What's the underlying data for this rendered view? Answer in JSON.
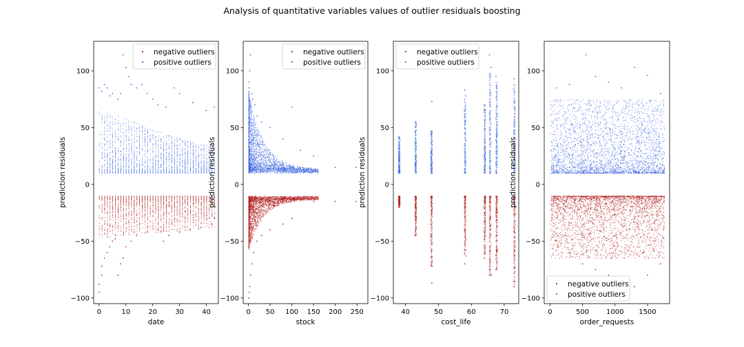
{
  "figure": {
    "title": "Analysis of quantitative variables values of outlier residuals boosting"
  },
  "colors": {
    "negative": "#b22222",
    "positive": "#4169e1"
  },
  "chart_data": [
    {
      "type": "scatter",
      "xlabel": "date",
      "ylabel": "prediction residuals",
      "xlim": [
        -2,
        44.5
      ],
      "ylim": [
        -105,
        126
      ],
      "xticks": [
        0,
        10,
        20,
        30,
        40
      ],
      "yticks": [
        -100,
        -50,
        0,
        50,
        100
      ],
      "legend_position": "upper right",
      "series": [
        {
          "name": "negative outliers",
          "color": "#b22222",
          "x": [
            0,
            0,
            1,
            1,
            2,
            3,
            4,
            5,
            6,
            7,
            8,
            9,
            10,
            12,
            14,
            18,
            22,
            24,
            26,
            30,
            34,
            38,
            42,
            43
          ],
          "y": [
            -95,
            -88,
            -80,
            -72,
            -65,
            -60,
            -55,
            -50,
            -48,
            -80,
            -70,
            -65,
            -55,
            -50,
            -45,
            -42,
            -40,
            -50,
            -45,
            -42,
            -40,
            -38,
            -35,
            -30
          ]
        },
        {
          "name": "positive outliers",
          "color": "#4169e1",
          "x": [
            0,
            1,
            2,
            3,
            4,
            5,
            7,
            8,
            9,
            10,
            11,
            12,
            14,
            16,
            18,
            20,
            22,
            25,
            28,
            30,
            35,
            40,
            43
          ],
          "y": [
            85,
            82,
            88,
            85,
            78,
            80,
            75,
            80,
            114,
            103,
            95,
            88,
            85,
            88,
            80,
            75,
            70,
            68,
            85,
            80,
            72,
            65,
            68
          ]
        }
      ]
    },
    {
      "type": "scatter",
      "xlabel": "stock",
      "ylabel": "prediction residuals",
      "xlim": [
        -12,
        275
      ],
      "ylim": [
        -105,
        126
      ],
      "xticks": [
        0,
        50,
        100,
        150,
        200,
        250
      ],
      "yticks": [
        -100,
        -50,
        0,
        50,
        100
      ],
      "legend_position": "upper right",
      "series": [
        {
          "name": "negative outliers",
          "color": "#b22222",
          "x": [
            1,
            2,
            3,
            5,
            8,
            12,
            20,
            30,
            50,
            80,
            100,
            150,
            200,
            248
          ],
          "y": [
            -100,
            -95,
            -90,
            -80,
            -70,
            -60,
            -50,
            -45,
            -40,
            -35,
            -30,
            -15,
            -15,
            -15
          ]
        },
        {
          "name": "positive outliers",
          "color": "#4169e1",
          "x": [
            1,
            2,
            3,
            5,
            8,
            10,
            15,
            20,
            30,
            50,
            80,
            100,
            120,
            150,
            200,
            248
          ],
          "y": [
            90,
            85,
            100,
            114,
            80,
            75,
            70,
            60,
            55,
            50,
            40,
            68,
            30,
            25,
            15,
            15
          ]
        }
      ]
    },
    {
      "type": "scatter",
      "xlabel": "cost_life",
      "ylabel": "prediction residuals",
      "xlim": [
        36.3,
        74.4
      ],
      "ylim": [
        -105,
        126
      ],
      "xticks": [
        40,
        50,
        60,
        70
      ],
      "yticks": [
        -100,
        -50,
        0,
        50,
        100
      ],
      "legend_position": "upper left",
      "series": [
        {
          "name": "negative outliers",
          "color": "#b22222",
          "x": [
            38,
            43,
            48,
            48,
            58,
            64,
            65.5,
            66,
            67.5,
            73
          ],
          "y": [
            -20,
            -45,
            -72,
            -87,
            -70,
            -65,
            -80,
            -80,
            -75,
            -90
          ]
        },
        {
          "name": "positive outliers",
          "color": "#4169e1",
          "x": [
            38,
            43,
            48,
            48,
            58,
            64,
            65.5,
            66,
            67.5,
            73
          ],
          "y": [
            42,
            55,
            73,
            45,
            83,
            70,
            114,
            103,
            95,
            93
          ]
        }
      ]
    },
    {
      "type": "scatter",
      "xlabel": "order_requests",
      "ylabel": "prediction residuals",
      "xlim": [
        -90,
        1840
      ],
      "ylim": [
        -105,
        126
      ],
      "xticks": [
        0,
        500,
        1000,
        1500
      ],
      "yticks": [
        -100,
        -50,
        0,
        50,
        100
      ],
      "legend_position": "lower left",
      "series": [
        {
          "name": "negative outliers",
          "color": "#b22222",
          "x": [
            100,
            300,
            500,
            700,
            900,
            1100,
            1300,
            1500,
            1700
          ],
          "y": [
            -50,
            -60,
            -70,
            -75,
            -80,
            -85,
            -90,
            -80,
            -70
          ]
        },
        {
          "name": "positive outliers",
          "color": "#4169e1",
          "x": [
            100,
            300,
            550,
            700,
            900,
            1100,
            1300,
            1500,
            1700
          ],
          "y": [
            85,
            88,
            114,
            95,
            90,
            85,
            103,
            96,
            80
          ]
        }
      ]
    }
  ]
}
